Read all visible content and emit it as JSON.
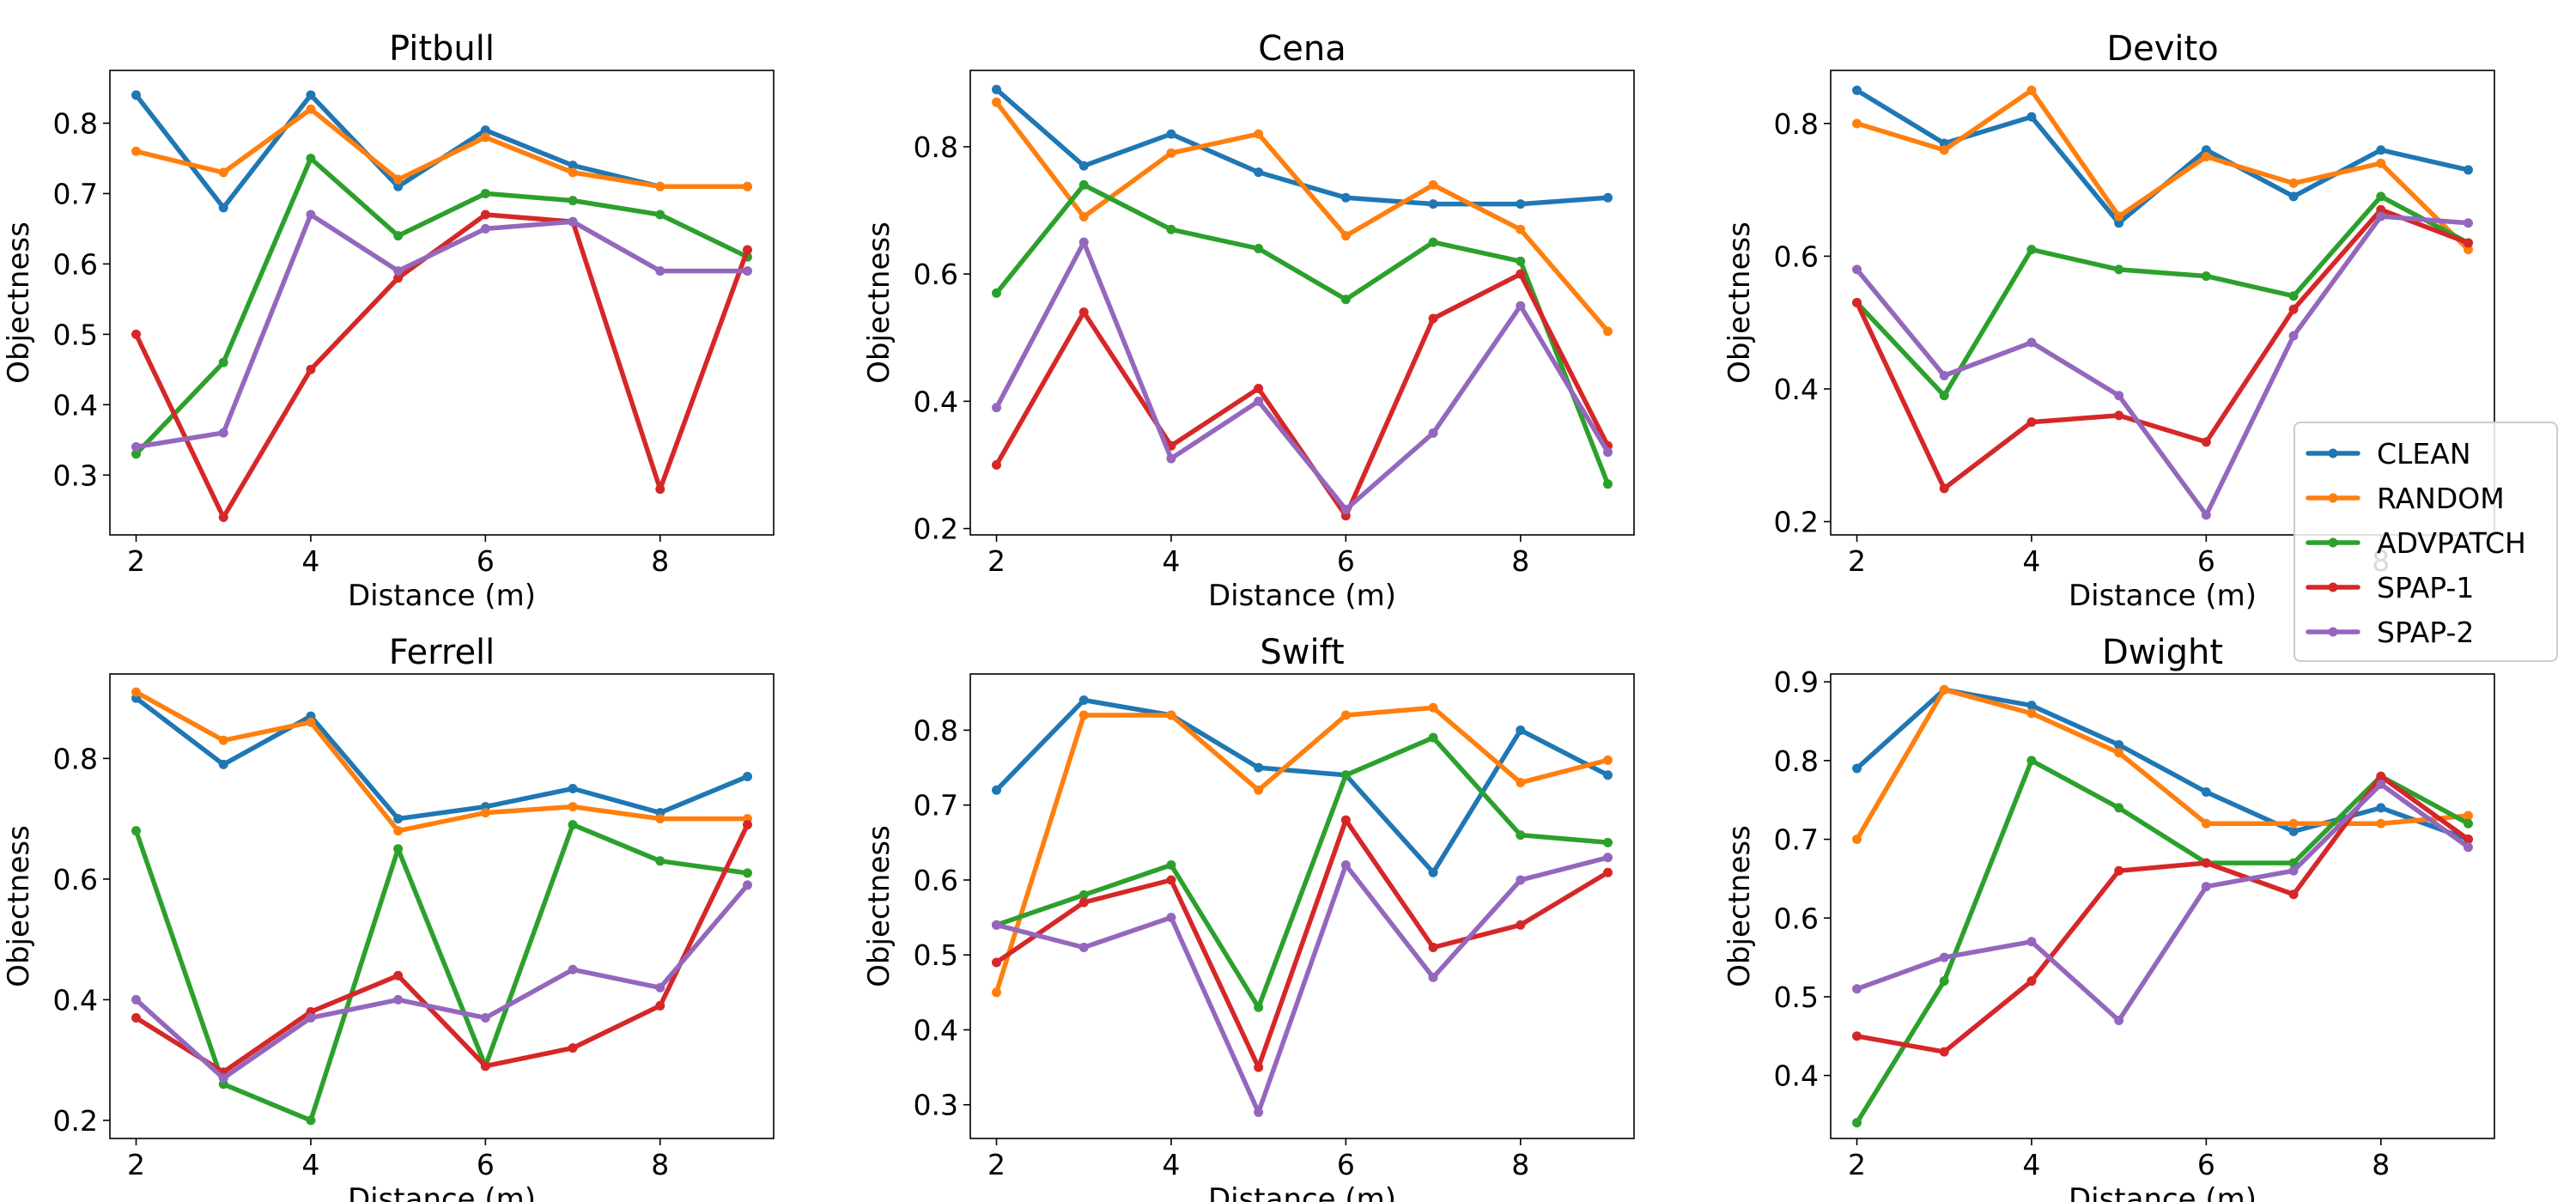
{
  "figure": {
    "type": "multi-line-chart-grid"
  },
  "legend": {
    "placement": "right, between top-right and bottom-right panels",
    "entries": [
      {
        "key": "clean",
        "label": "CLEAN",
        "color": "#1f77b4"
      },
      {
        "key": "random",
        "label": "RANDOM",
        "color": "#ff7f0e"
      },
      {
        "key": "advpatch",
        "label": "ADVPATCH",
        "color": "#2ca02c"
      },
      {
        "key": "spap1",
        "label": "SPAP-1",
        "color": "#d62728"
      },
      {
        "key": "spap2",
        "label": "SPAP-2",
        "color": "#9467bd"
      }
    ]
  },
  "chart_data": [
    {
      "type": "line",
      "title": "Pitbull",
      "xlabel": "Distance (m)",
      "ylabel": "Objectness",
      "x": [
        2,
        3,
        4,
        5,
        6,
        7,
        8,
        9
      ],
      "xlim": [
        1.7,
        9.3
      ],
      "xticks": [
        2,
        4,
        6,
        8
      ],
      "ylim": [
        0.215,
        0.875
      ],
      "yticks": [
        0.3,
        0.4,
        0.5,
        0.6,
        0.7,
        0.8
      ],
      "yticklabels": [
        "0.3",
        "0.4",
        "0.5",
        "0.6",
        "0.7",
        "0.8"
      ],
      "series": [
        {
          "name": "CLEAN",
          "values": [
            0.84,
            0.68,
            0.84,
            0.71,
            0.79,
            0.74,
            0.71,
            0.71
          ]
        },
        {
          "name": "RANDOM",
          "values": [
            0.76,
            0.73,
            0.82,
            0.72,
            0.78,
            0.73,
            0.71,
            0.71
          ]
        },
        {
          "name": "ADVPATCH",
          "values": [
            0.33,
            0.46,
            0.75,
            0.64,
            0.7,
            0.69,
            0.67,
            0.61
          ]
        },
        {
          "name": "SPAP-1",
          "values": [
            0.5,
            0.24,
            0.45,
            0.58,
            0.67,
            0.66,
            0.28,
            0.62
          ]
        },
        {
          "name": "SPAP-2",
          "values": [
            0.34,
            0.36,
            0.67,
            0.59,
            0.65,
            0.66,
            0.59,
            0.59
          ]
        }
      ]
    },
    {
      "type": "line",
      "title": "Cena",
      "xlabel": "Distance (m)",
      "ylabel": "Objectness",
      "x": [
        2,
        3,
        4,
        5,
        6,
        7,
        8,
        9
      ],
      "xlim": [
        1.7,
        9.3
      ],
      "xticks": [
        2,
        4,
        6,
        8
      ],
      "ylim": [
        0.19,
        0.92
      ],
      "yticks": [
        0.2,
        0.4,
        0.6,
        0.8
      ],
      "yticklabels": [
        "0.2",
        "0.4",
        "0.6",
        "0.8"
      ],
      "series": [
        {
          "name": "CLEAN",
          "values": [
            0.89,
            0.77,
            0.82,
            0.76,
            0.72,
            0.71,
            0.71,
            0.72
          ]
        },
        {
          "name": "RANDOM",
          "values": [
            0.87,
            0.69,
            0.79,
            0.82,
            0.66,
            0.74,
            0.67,
            0.51
          ]
        },
        {
          "name": "ADVPATCH",
          "values": [
            0.57,
            0.74,
            0.67,
            0.64,
            0.56,
            0.65,
            0.62,
            0.27
          ]
        },
        {
          "name": "SPAP-1",
          "values": [
            0.3,
            0.54,
            0.33,
            0.42,
            0.22,
            0.53,
            0.6,
            0.33
          ]
        },
        {
          "name": "SPAP-2",
          "values": [
            0.39,
            0.65,
            0.31,
            0.4,
            0.23,
            0.35,
            0.55,
            0.32
          ]
        }
      ]
    },
    {
      "type": "line",
      "title": "Devito",
      "xlabel": "Distance (m)",
      "ylabel": "Objectness",
      "x": [
        2,
        3,
        4,
        5,
        6,
        7,
        8,
        9
      ],
      "xlim": [
        1.7,
        9.3
      ],
      "xticks": [
        2,
        4,
        6,
        8
      ],
      "ylim": [
        0.18,
        0.88
      ],
      "yticks": [
        0.2,
        0.4,
        0.6,
        0.8
      ],
      "yticklabels": [
        "0.2",
        "0.4",
        "0.6",
        "0.8"
      ],
      "series": [
        {
          "name": "CLEAN",
          "values": [
            0.85,
            0.77,
            0.81,
            0.65,
            0.76,
            0.69,
            0.76,
            0.73
          ]
        },
        {
          "name": "RANDOM",
          "values": [
            0.8,
            0.76,
            0.85,
            0.66,
            0.75,
            0.71,
            0.74,
            0.61
          ]
        },
        {
          "name": "ADVPATCH",
          "values": [
            0.53,
            0.39,
            0.61,
            0.58,
            0.57,
            0.54,
            0.69,
            0.62
          ]
        },
        {
          "name": "SPAP-1",
          "values": [
            0.53,
            0.25,
            0.35,
            0.36,
            0.32,
            0.52,
            0.67,
            0.62
          ]
        },
        {
          "name": "SPAP-2",
          "values": [
            0.58,
            0.42,
            0.47,
            0.39,
            0.21,
            0.48,
            0.66,
            0.65
          ]
        }
      ]
    },
    {
      "type": "line",
      "title": "Ferrell",
      "xlabel": "Distance (m)",
      "ylabel": "Objectness",
      "x": [
        2,
        3,
        4,
        5,
        6,
        7,
        8,
        9
      ],
      "xlim": [
        1.7,
        9.3
      ],
      "xticks": [
        2,
        4,
        6,
        8
      ],
      "ylim": [
        0.17,
        0.94
      ],
      "yticks": [
        0.2,
        0.4,
        0.6,
        0.8
      ],
      "yticklabels": [
        "0.2",
        "0.4",
        "0.6",
        "0.8"
      ],
      "series": [
        {
          "name": "CLEAN",
          "values": [
            0.9,
            0.79,
            0.87,
            0.7,
            0.72,
            0.75,
            0.71,
            0.77
          ]
        },
        {
          "name": "RANDOM",
          "values": [
            0.91,
            0.83,
            0.86,
            0.68,
            0.71,
            0.72,
            0.7,
            0.7
          ]
        },
        {
          "name": "ADVPATCH",
          "values": [
            0.68,
            0.26,
            0.2,
            0.65,
            0.29,
            0.69,
            0.63,
            0.61
          ]
        },
        {
          "name": "SPAP-1",
          "values": [
            0.37,
            0.28,
            0.38,
            0.44,
            0.29,
            0.32,
            0.39,
            0.69
          ]
        },
        {
          "name": "SPAP-2",
          "values": [
            0.4,
            0.27,
            0.37,
            0.4,
            0.37,
            0.45,
            0.42,
            0.59
          ]
        }
      ]
    },
    {
      "type": "line",
      "title": "Swift",
      "xlabel": "Distance (m)",
      "ylabel": "Objectness",
      "x": [
        2,
        3,
        4,
        5,
        6,
        7,
        8,
        9
      ],
      "xlim": [
        1.7,
        9.3
      ],
      "xticks": [
        2,
        4,
        6,
        8
      ],
      "ylim": [
        0.255,
        0.875
      ],
      "yticks": [
        0.3,
        0.4,
        0.5,
        0.6,
        0.7,
        0.8
      ],
      "yticklabels": [
        "0.3",
        "0.4",
        "0.5",
        "0.6",
        "0.7",
        "0.8"
      ],
      "series": [
        {
          "name": "CLEAN",
          "values": [
            0.72,
            0.84,
            0.82,
            0.75,
            0.74,
            0.61,
            0.8,
            0.74
          ]
        },
        {
          "name": "RANDOM",
          "values": [
            0.45,
            0.82,
            0.82,
            0.72,
            0.82,
            0.83,
            0.73,
            0.76
          ]
        },
        {
          "name": "ADVPATCH",
          "values": [
            0.54,
            0.58,
            0.62,
            0.43,
            0.74,
            0.79,
            0.66,
            0.65
          ]
        },
        {
          "name": "SPAP-1",
          "values": [
            0.49,
            0.57,
            0.6,
            0.35,
            0.68,
            0.51,
            0.54,
            0.61
          ]
        },
        {
          "name": "SPAP-2",
          "values": [
            0.54,
            0.51,
            0.55,
            0.29,
            0.62,
            0.47,
            0.6,
            0.63
          ]
        }
      ]
    },
    {
      "type": "line",
      "title": "Dwight",
      "xlabel": "Distance (m)",
      "ylabel": "Objectness",
      "x": [
        2,
        3,
        4,
        5,
        6,
        7,
        8,
        9
      ],
      "xlim": [
        1.7,
        9.3
      ],
      "xticks": [
        2,
        4,
        6,
        8
      ],
      "ylim": [
        0.32,
        0.91
      ],
      "yticks": [
        0.4,
        0.5,
        0.6,
        0.7,
        0.8,
        0.9
      ],
      "yticklabels": [
        "0.4",
        "0.5",
        "0.6",
        "0.7",
        "0.8",
        "0.9"
      ],
      "series": [
        {
          "name": "CLEAN",
          "values": [
            0.79,
            0.89,
            0.87,
            0.82,
            0.76,
            0.71,
            0.74,
            0.7
          ]
        },
        {
          "name": "RANDOM",
          "values": [
            0.7,
            0.89,
            0.86,
            0.81,
            0.72,
            0.72,
            0.72,
            0.73
          ]
        },
        {
          "name": "ADVPATCH",
          "values": [
            0.34,
            0.52,
            0.8,
            0.74,
            0.67,
            0.67,
            0.78,
            0.72
          ]
        },
        {
          "name": "SPAP-1",
          "values": [
            0.45,
            0.43,
            0.52,
            0.66,
            0.67,
            0.63,
            0.78,
            0.7
          ]
        },
        {
          "name": "SPAP-2",
          "values": [
            0.51,
            0.55,
            0.57,
            0.47,
            0.64,
            0.66,
            0.77,
            0.69
          ]
        }
      ]
    }
  ]
}
